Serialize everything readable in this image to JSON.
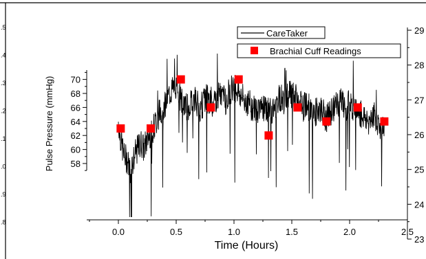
{
  "chart_data": {
    "type": "line",
    "xlabel": "Time (Hours)",
    "ylabel": "Pulse Pressure (mmHg)",
    "x_ticks": [
      "0.0",
      "0.5",
      "1.0",
      "1.5",
      "2.0",
      "2.5"
    ],
    "y_ticks": [
      "58",
      "60",
      "62",
      "64",
      "66",
      "68",
      "70"
    ],
    "y2_ticks": [
      "23",
      "24",
      "25",
      "26",
      "27",
      "28",
      "29"
    ],
    "left_clipped_ticks": [
      ".5",
      ".4",
      ".3",
      ".2",
      ".1",
      ".0",
      ".9",
      ".8"
    ],
    "xlim": [
      -0.15,
      2.5
    ],
    "legend_position": "top-right",
    "series": [
      {
        "name": "CareTaker",
        "style": "line",
        "color": "#000000",
        "x": [
          0.0,
          0.02,
          0.05,
          0.08,
          0.1,
          0.12,
          0.15,
          0.18,
          0.2,
          0.22,
          0.25,
          0.28,
          0.3,
          0.33,
          0.36,
          0.4,
          0.43,
          0.46,
          0.5,
          0.53,
          0.56,
          0.6,
          0.63,
          0.66,
          0.7,
          0.73,
          0.76,
          0.8,
          0.83,
          0.86,
          0.9,
          0.93,
          0.96,
          1.0,
          1.03,
          1.06,
          1.1,
          1.13,
          1.16,
          1.2,
          1.23,
          1.26,
          1.3,
          1.33,
          1.36,
          1.4,
          1.43,
          1.46,
          1.5,
          1.53,
          1.56,
          1.6,
          1.63,
          1.66,
          1.7,
          1.73,
          1.76,
          1.8,
          1.83,
          1.86,
          1.9,
          1.93,
          1.96,
          2.0,
          2.03,
          2.06,
          2.1,
          2.13,
          2.16,
          2.2,
          2.23,
          2.26,
          2.3
        ],
        "values": [
          64.0,
          61.5,
          59.0,
          58.5,
          57.0,
          58.0,
          59.5,
          60.5,
          61.0,
          60.0,
          61.5,
          62.5,
          63.0,
          64.0,
          65.5,
          66.5,
          67.5,
          68.5,
          69.0,
          67.5,
          66.5,
          66.0,
          66.5,
          67.5,
          66.0,
          66.5,
          67.5,
          66.5,
          67.0,
          67.5,
          68.0,
          67.0,
          68.5,
          69.0,
          68.5,
          67.5,
          67.0,
          66.5,
          66.0,
          65.5,
          66.5,
          66.0,
          65.5,
          65.0,
          66.5,
          67.5,
          67.0,
          67.5,
          68.0,
          67.5,
          66.5,
          66.0,
          66.5,
          65.5,
          65.0,
          66.0,
          65.5,
          64.5,
          65.0,
          66.0,
          66.5,
          67.0,
          66.0,
          66.5,
          66.0,
          65.5,
          65.0,
          64.5,
          64.0,
          65.0,
          64.5,
          63.0,
          64.0
        ]
      },
      {
        "name": "Brachial Cuff Readings",
        "style": "marker",
        "color": "#ff0000",
        "x": [
          0.02,
          0.28,
          0.54,
          0.8,
          1.04,
          1.3,
          1.55,
          1.8,
          2.07,
          2.3
        ],
        "values": [
          63,
          63,
          70,
          66,
          70,
          62,
          66,
          64,
          66,
          64
        ]
      }
    ]
  }
}
